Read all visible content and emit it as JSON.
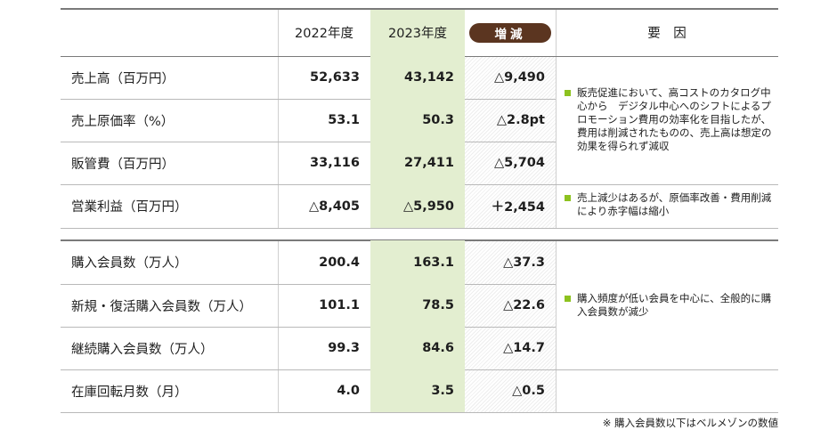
{
  "header": {
    "col_2022": "2022年度",
    "col_2023": "2023年度",
    "col_change": "増減",
    "col_factor": "要　因"
  },
  "rows": [
    {
      "label": "売上高（百万円）",
      "v2022": "52,633",
      "v2023": "43,142",
      "change": "△9,490"
    },
    {
      "label": "売上原価率（%）",
      "v2022": "53.1",
      "v2023": "50.3",
      "change": "△2.8pt"
    },
    {
      "label": "販管費（百万円）",
      "v2022": "33,116",
      "v2023": "27,411",
      "change": "△5,704"
    },
    {
      "label": "営業利益（百万円）",
      "v2022": "△8,405",
      "v2023": "△5,950",
      "change": "＋2,454"
    },
    {
      "label": "購入会員数（万人）",
      "v2022": "200.4",
      "v2023": "163.1",
      "change": "△37.3"
    },
    {
      "label": "新規・復活購入会員数（万人）",
      "v2022": "101.1",
      "v2023": "78.5",
      "change": "△22.6"
    },
    {
      "label": "継続購入会員数（万人）",
      "v2022": "99.3",
      "v2023": "84.6",
      "change": "△14.7"
    },
    {
      "label": "在庫回転月数（月）",
      "v2022": "4.0",
      "v2023": "3.5",
      "change": "△0.5"
    }
  ],
  "notes": [
    "販売促進において、高コストのカタログ中心から　デジタル中心へのシフトによるプロモーション費用の効率化を目指したが、費用は削減されたものの、売上高は想定の効果を得られず減収",
    "売上減少はあるが、原価率改善・費用削減により赤字幅は縮小",
    "購入頻度が低い会員を中心に、全般的に購入会員数が減少"
  ],
  "footnote": "※ 購入会員数以下はベルメゾンの数値",
  "colors": {
    "highlight_2023": "#e3eed0",
    "badge": "#5b3520",
    "bullet": "#8dc21f"
  }
}
